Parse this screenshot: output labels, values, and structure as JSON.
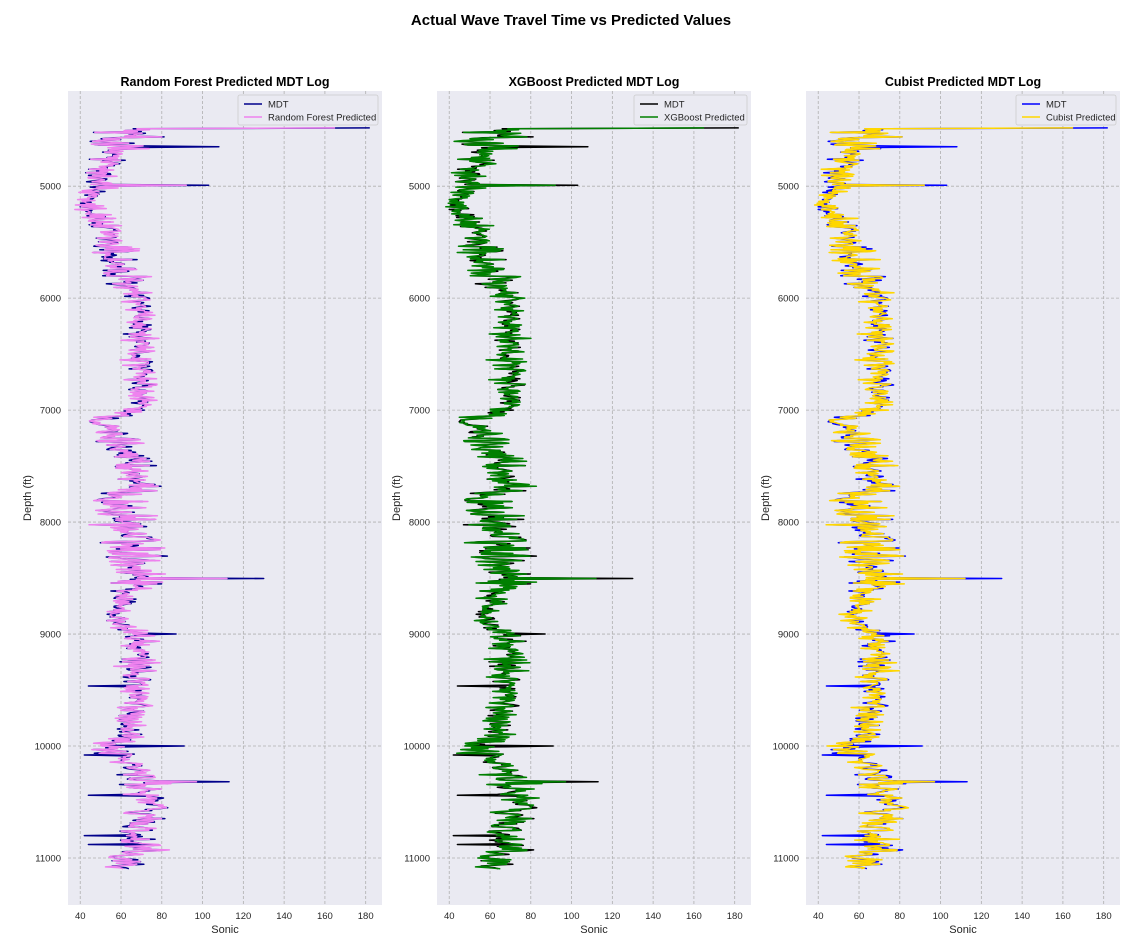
{
  "figure_title": "Actual Wave Travel Time vs Predicted Values",
  "chart_data": [
    {
      "type": "line",
      "title": "Random Forest Predicted MDT Log",
      "xlabel": "Sonic",
      "ylabel": "Depth (ft)",
      "xlim": [
        34,
        188
      ],
      "ylim": [
        11420,
        4150
      ],
      "y_inverted": true,
      "grid": true,
      "legend_position": "top-right",
      "xticks": [
        40,
        60,
        80,
        100,
        120,
        140,
        160,
        180
      ],
      "yticks": [
        5000,
        6000,
        7000,
        8000,
        9000,
        10000,
        11000
      ],
      "series": [
        {
          "name": "MDT",
          "color": "#00008b"
        },
        {
          "name": "Random Forest Predicted",
          "color": "#ee82ee"
        }
      ]
    },
    {
      "type": "line",
      "title": "XGBoost Predicted MDT Log",
      "xlabel": "Sonic",
      "ylabel": "Depth (ft)",
      "xlim": [
        34,
        188
      ],
      "ylim": [
        11420,
        4150
      ],
      "y_inverted": true,
      "grid": true,
      "legend_position": "top-right",
      "xticks": [
        40,
        60,
        80,
        100,
        120,
        140,
        160,
        180
      ],
      "yticks": [
        5000,
        6000,
        7000,
        8000,
        9000,
        10000,
        11000
      ],
      "series": [
        {
          "name": "MDT",
          "color": "#000000"
        },
        {
          "name": "XGBoost Predicted",
          "color": "#008000"
        }
      ]
    },
    {
      "type": "line",
      "title": "Cubist Predicted MDT Log",
      "xlabel": "Sonic",
      "ylabel": "Depth (ft)",
      "xlim": [
        34,
        188
      ],
      "ylim": [
        11420,
        4150
      ],
      "y_inverted": true,
      "grid": true,
      "legend_position": "top-right",
      "xticks": [
        40,
        60,
        80,
        100,
        120,
        140,
        160,
        180
      ],
      "yticks": [
        5000,
        6000,
        7000,
        8000,
        9000,
        10000,
        11000
      ],
      "series": [
        {
          "name": "MDT",
          "color": "#0000ff"
        },
        {
          "name": "Cubist Predicted",
          "color": "#ffd700"
        }
      ]
    }
  ],
  "log_profile": {
    "depth_start": 4480,
    "depth_end": 11100,
    "depth_step": 8,
    "knots": [
      [
        4480,
        62,
        30
      ],
      [
        4550,
        60,
        28
      ],
      [
        4700,
        55,
        16
      ],
      [
        4850,
        50,
        12
      ],
      [
        5000,
        47,
        10
      ],
      [
        5200,
        46,
        9
      ],
      [
        5400,
        51,
        12
      ],
      [
        5600,
        58,
        16
      ],
      [
        5800,
        58,
        18
      ],
      [
        6000,
        69,
        8
      ],
      [
        6500,
        69,
        9
      ],
      [
        7000,
        69,
        9
      ],
      [
        7100,
        48,
        10
      ],
      [
        7300,
        60,
        15
      ],
      [
        7400,
        66,
        14
      ],
      [
        7700,
        66,
        14
      ],
      [
        7800,
        58,
        16
      ],
      [
        8300,
        68,
        18
      ],
      [
        8550,
        70,
        16
      ],
      [
        8650,
        62,
        8
      ],
      [
        8900,
        58,
        8
      ],
      [
        9000,
        68,
        10
      ],
      [
        9500,
        68,
        10
      ],
      [
        9700,
        66,
        9
      ],
      [
        9900,
        64,
        9
      ],
      [
        10000,
        55,
        12
      ],
      [
        10200,
        66,
        14
      ],
      [
        10500,
        75,
        12
      ],
      [
        10800,
        68,
        18
      ],
      [
        11100,
        60,
        16
      ]
    ],
    "mdt_spikes": [
      [
        4480,
        182
      ],
      [
        4650,
        108
      ],
      [
        4990,
        103
      ],
      [
        8500,
        130
      ],
      [
        9000,
        87
      ],
      [
        9460,
        44
      ],
      [
        10000,
        91
      ],
      [
        10080,
        42
      ],
      [
        10320,
        113
      ],
      [
        10440,
        44
      ],
      [
        10800,
        42
      ],
      [
        10880,
        44
      ]
    ],
    "pred_spikes": [
      [
        4480,
        165
      ],
      [
        4990,
        92
      ],
      [
        8500,
        112
      ],
      [
        10320,
        97
      ]
    ]
  }
}
